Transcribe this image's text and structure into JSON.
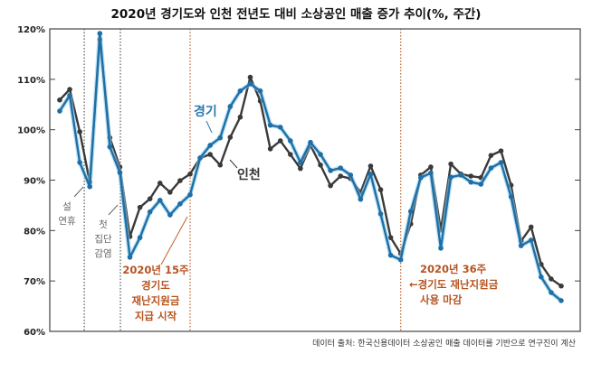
{
  "chart_data": {
    "type": "line",
    "title": "2020년 경기도와 인천 전년도 대비 소상공인 매출 증가 추이(%, 주간)",
    "xlabel": "",
    "ylabel": "",
    "ylim": [
      60,
      120
    ],
    "yticks": [
      "60%",
      "70%",
      "80%",
      "90%",
      "100%",
      "110%",
      "120%"
    ],
    "x": [
      2,
      3,
      4,
      5,
      6,
      7,
      8,
      9,
      10,
      11,
      12,
      13,
      14,
      15,
      16,
      17,
      18,
      19,
      20,
      21,
      22,
      23,
      24,
      25,
      26,
      27,
      28,
      29,
      30,
      31,
      32,
      33,
      34,
      35,
      36,
      37,
      38,
      39,
      40,
      41,
      42,
      43,
      44,
      45,
      46,
      47,
      48,
      49,
      50,
      51,
      52
    ],
    "series": [
      {
        "name": "인천",
        "color": "#3a3a3a",
        "values": [
          105.9,
          108.0,
          99.6,
          89.6,
          117.9,
          98.4,
          92.6,
          78.8,
          84.6,
          86.3,
          89.4,
          87.6,
          89.9,
          91.2,
          94.4,
          95.1,
          93.0,
          98.5,
          102.5,
          110.4,
          105.7,
          96.2,
          97.8,
          95.1,
          92.3,
          96.9,
          93.0,
          88.9,
          90.8,
          90.3,
          87.6,
          92.8,
          88.1,
          78.6,
          75.4,
          81.3,
          91.0,
          92.6,
          80.1,
          93.2,
          91.2,
          90.8,
          90.5,
          94.9,
          95.8,
          89.0,
          77.9,
          80.7,
          73.3,
          70.4,
          69.0
        ]
      },
      {
        "name": "경기",
        "color": "#1f6fa6",
        "values": [
          103.7,
          106.8,
          93.5,
          88.7,
          119.1,
          96.6,
          91.5,
          74.7,
          78.6,
          83.7,
          86.0,
          83.1,
          85.3,
          87.1,
          94.4,
          96.9,
          98.4,
          104.6,
          107.7,
          109.1,
          107.7,
          100.9,
          100.5,
          97.8,
          93.5,
          97.5,
          95.1,
          91.9,
          92.4,
          91.0,
          86.2,
          91.2,
          83.3,
          75.1,
          74.2,
          83.8,
          90.5,
          91.4,
          76.5,
          90.6,
          91.0,
          89.6,
          89.2,
          92.4,
          93.5,
          86.7,
          77.0,
          78.1,
          70.8,
          67.7,
          66.1
        ]
      }
    ],
    "markers": [
      {
        "week": 4.45,
        "style": "gray",
        "lines": [
          "설",
          "연휴"
        ]
      },
      {
        "week": 8.05,
        "style": "gray",
        "lines": [
          "첫",
          "집단",
          "감염"
        ]
      },
      {
        "week": 15,
        "style": "orange",
        "lines": [
          "2020년 15주",
          "경기도",
          "재난지원금",
          "지급 시작"
        ]
      },
      {
        "week": 36,
        "style": "orange",
        "lines": [
          "2020년 36주",
          "←경기도 재난지원금",
          "사용 마감"
        ]
      }
    ],
    "grid": false,
    "legend": "inline labels"
  },
  "source": "데이터 출처: 한국신용데이터 소상공인 매출 데이터를 기반으로 연구진이 계산"
}
